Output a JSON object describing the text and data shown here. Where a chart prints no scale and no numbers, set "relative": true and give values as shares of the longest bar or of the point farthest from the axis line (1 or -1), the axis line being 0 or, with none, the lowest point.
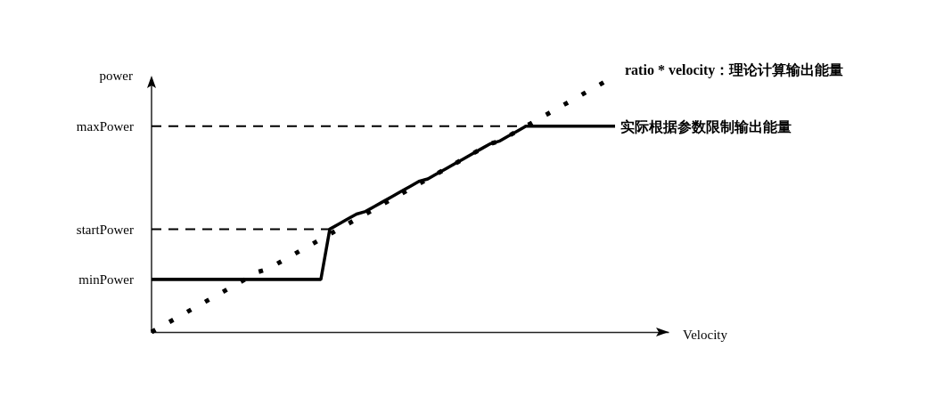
{
  "chart_data": {
    "type": "line",
    "relative": true,
    "xlabel": "Velocity",
    "ylabel": "power",
    "categories": [
      null,
      null,
      null,
      null,
      null,
      null,
      null,
      null,
      null,
      null,
      null,
      null,
      null,
      null,
      null,
      null,
      null,
      null,
      null,
      null,
      null,
      null,
      null,
      null,
      null,
      null,
      null,
      null,
      null,
      null,
      null,
      null,
      null,
      null,
      null,
      null,
      null,
      null,
      null,
      null,
      null,
      null,
      null,
      null,
      null,
      null,
      null,
      null,
      null,
      null,
      null,
      null,
      null,
      null,
      null,
      null,
      null,
      null,
      null
    ],
    "series": [
      {
        "name": "ratio * velocity：理论计算输出能量",
        "color": "#000000",
        "line_style": "dotted",
        "values": [
          0,
          0.02,
          0.04,
          0.06,
          0.08,
          0.1,
          0.12,
          0.14,
          0.16,
          0.18,
          0.2,
          0.22,
          0.24,
          0.25,
          0.27,
          0.29,
          0.31,
          0.33,
          0.35,
          0.37,
          0.39,
          0.41,
          0.43,
          0.45,
          0.47,
          0.49,
          0.51,
          0.53,
          0.55,
          0.57,
          0.59,
          0.61,
          0.63,
          0.65,
          0.67,
          0.69,
          0.71,
          0.73,
          0.75,
          0.76,
          0.78,
          0.8,
          0.82,
          0.84,
          0.86,
          0.88,
          0.9,
          0.92,
          0.94,
          0.96,
          0.98,
          1,
          null,
          null,
          null,
          null,
          null,
          null,
          null
        ]
      },
      {
        "name": "实际根据参数限制输出能量",
        "color": "#000000",
        "line_style": "solid",
        "values": [
          0.21,
          0.21,
          0.21,
          0.21,
          0.21,
          0.21,
          0.21,
          0.21,
          0.21,
          0.21,
          0.21,
          0.21,
          0.21,
          0.21,
          0.21,
          0.21,
          0.21,
          0.21,
          0.21,
          0.21,
          0.41,
          0.43,
          0.45,
          0.47,
          0.48,
          0.5,
          0.52,
          0.54,
          0.56,
          0.58,
          0.6,
          0.61,
          0.63,
          0.65,
          0.67,
          0.69,
          0.71,
          0.73,
          0.75,
          0.76,
          0.78,
          0.8,
          0.82,
          0.82,
          0.82,
          0.82,
          0.82,
          0.82,
          0.82,
          0.82,
          0.82,
          0.82,
          0.82,
          null,
          null,
          null,
          null,
          null,
          null
        ]
      }
    ],
    "ref_lines": [
      {
        "axis": "y",
        "value": 0.82,
        "label": "maxPower",
        "color": "#000000",
        "line_style": "dashed"
      },
      {
        "axis": "y",
        "value": 0.41,
        "label": "startPower",
        "color": "#000000",
        "line_style": "dashed"
      },
      {
        "axis": "y",
        "value": 0.21,
        "label": "minPower",
        "color": "#000000",
        "line_style": "solid"
      }
    ]
  }
}
